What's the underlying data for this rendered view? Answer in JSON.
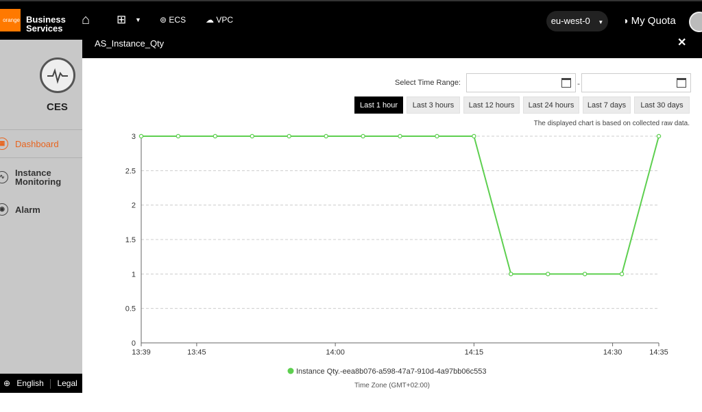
{
  "topbar": {
    "logo_text": "orange",
    "brand_line1": "Business",
    "brand_line2": "Services",
    "nav": {
      "ecs": "ECS",
      "vpc": "VPC"
    },
    "region": "eu-west-0",
    "quota": "My Quota"
  },
  "sidebar": {
    "service": "CES",
    "items": [
      {
        "label": "Dashboard",
        "active": true
      },
      {
        "label_line1": "Instance",
        "label_line2": "Monitoring"
      },
      {
        "label": "Alarm"
      }
    ],
    "footer": {
      "language": "English",
      "legal": "Legal St"
    }
  },
  "modal": {
    "title": "AS_Instance_Qty",
    "close": "✕",
    "time_range_label": "Select Time Range:",
    "date_separator": "-",
    "buttons": [
      "Last 1 hour",
      "Last 3 hours",
      "Last 12 hours",
      "Last 24 hours",
      "Last 7 days",
      "Last 30 days"
    ],
    "active_button": "Last 1 hour",
    "note": "The displayed chart is based on collected raw data.",
    "timezone": "Time Zone (GMT+02:00)"
  },
  "chart_data": {
    "type": "line",
    "x_ticks": [
      "13:39",
      "13:45",
      "14:00",
      "14:15",
      "14:30",
      "14:35"
    ],
    "x_tick_minutes": [
      0,
      6,
      21,
      36,
      51,
      56
    ],
    "y_ticks": [
      0,
      0.5,
      1,
      1.5,
      2,
      2.5,
      3
    ],
    "ylim": [
      0,
      3
    ],
    "series": [
      {
        "name": "Instance Qty.-eea8b076-a598-47a7-910d-4a97bb06c553",
        "color": "#5dcf4f",
        "x_minutes": [
          0,
          4,
          8,
          12,
          16,
          20,
          24,
          28,
          32,
          36,
          40,
          44,
          48,
          52,
          56
        ],
        "values": [
          3,
          3,
          3,
          3,
          3,
          3,
          3,
          3,
          3,
          3,
          1,
          1,
          1,
          1,
          3
        ]
      }
    ],
    "grid": true
  }
}
